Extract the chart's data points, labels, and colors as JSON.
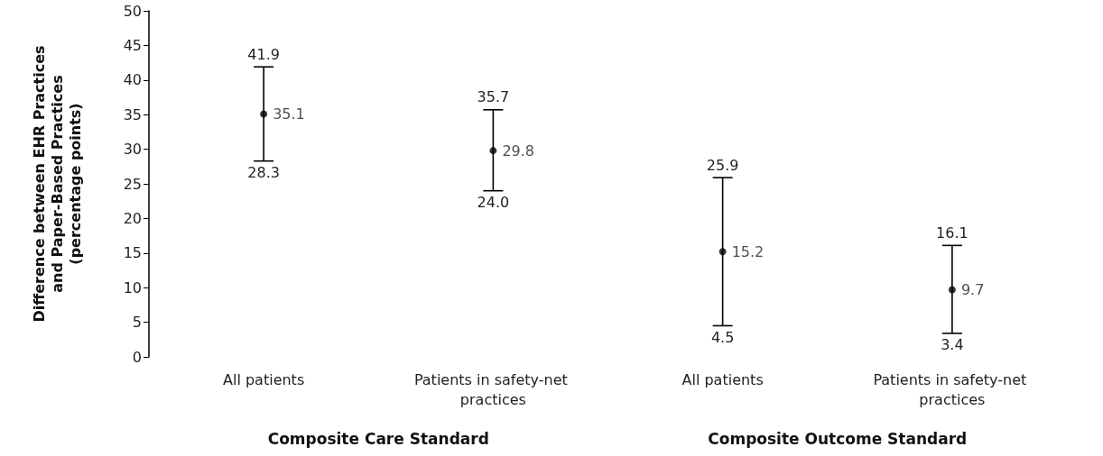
{
  "chart_data": {
    "type": "scatter",
    "ylabel": "Difference between EHR Practices and Paper-Based Practices (percentage points)",
    "categories": [
      "All patients",
      "Patients in safety-net practices",
      "All patients",
      "Patients in safety-net practices"
    ],
    "series": [
      {
        "color": "#000000",
        "values": [
          35.1,
          29.8,
          15.2,
          9.7
        ],
        "errors": [
          [
            28.3,
            41.9
          ],
          [
            24.0,
            35.7
          ],
          [
            4.5,
            25.9
          ],
          [
            3.4,
            16.1
          ]
        ]
      }
    ],
    "ylim": [
      0,
      50
    ],
    "yticks": [
      0,
      5,
      10,
      15,
      20,
      25,
      30,
      35,
      40,
      45,
      50
    ],
    "marker": "circle",
    "data_labels": true,
    "grid": false,
    "annotations": [
      "Composite Care Standard",
      "Composite Outcome Standard",
      "41.9",
      "28.3",
      "35.7",
      "24.0",
      "25.9",
      "4.5",
      "16.1",
      "3.4"
    ]
  }
}
